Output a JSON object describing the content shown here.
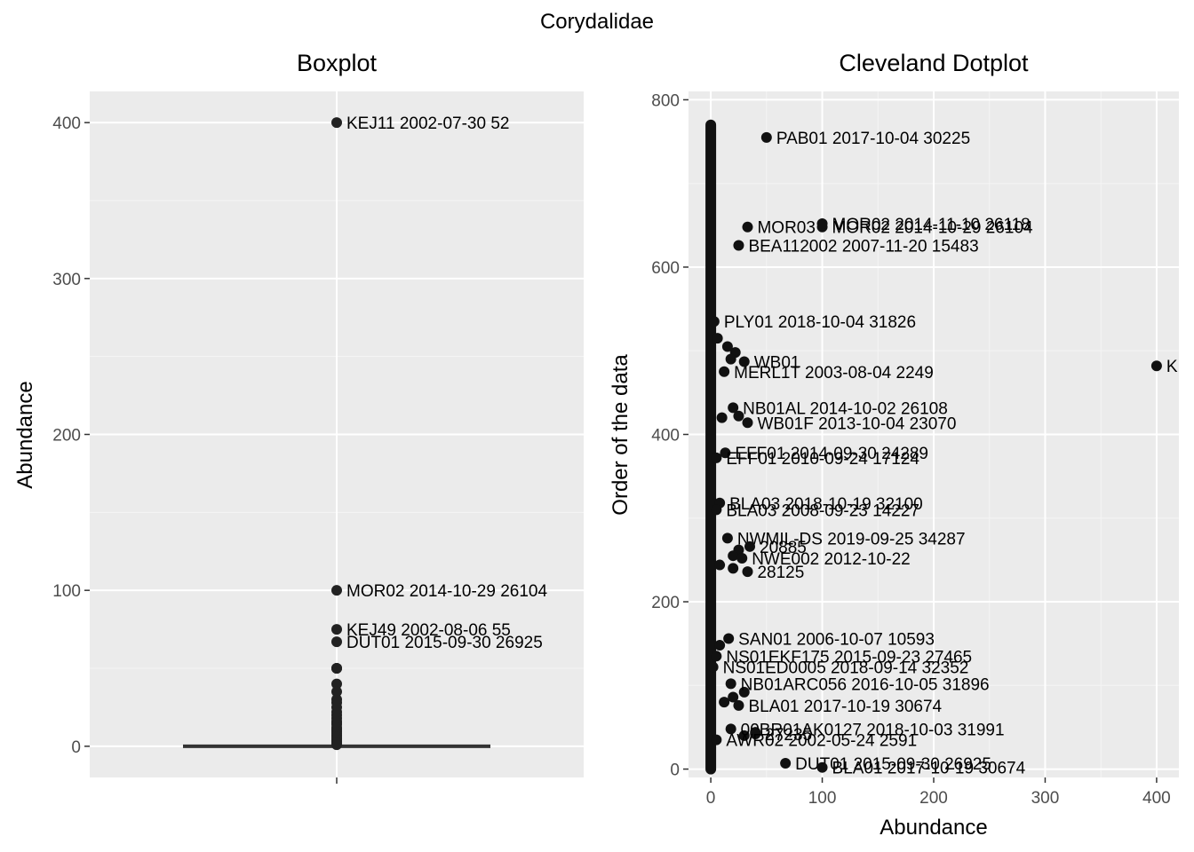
{
  "figure": {
    "title": "Corydalidae"
  },
  "chart_data": [
    {
      "type": "box",
      "title": "Boxplot",
      "xlabel": "",
      "ylabel": "Abundance",
      "ylim": [
        -20,
        420
      ],
      "y_ticks": [
        0,
        100,
        200,
        300,
        400
      ],
      "grid": true,
      "box": {
        "min": 0,
        "q1": 0,
        "median": 0,
        "q3": 0,
        "max": 0
      },
      "labeled_outliers": [
        {
          "label": "KEJ11 2002-07-30 52",
          "value": 400
        },
        {
          "label": "MOR02 2014-10-29 26104",
          "value": 100
        },
        {
          "label": "KEJ49 2002-08-06 55",
          "value": 75
        },
        {
          "label": "DUT01 2015-09-30 26925",
          "value": 67
        }
      ],
      "other_outlier_values": [
        50,
        50,
        50,
        40,
        35,
        30,
        28,
        25,
        22,
        20,
        18,
        16,
        15,
        14,
        12,
        11,
        10,
        9,
        8,
        7,
        6,
        5,
        4,
        3,
        2,
        1
      ]
    },
    {
      "type": "scatter",
      "title": "Cleveland Dotplot",
      "xlabel": "Abundance",
      "ylabel": "Order of the data",
      "xlim": [
        -20,
        420
      ],
      "ylim": [
        -10,
        810
      ],
      "x_ticks": [
        0,
        100,
        200,
        300,
        400
      ],
      "y_ticks": [
        0,
        200,
        400,
        600,
        800
      ],
      "grid": true,
      "labeled_points": [
        {
          "label": "PAB01 2017-10-04 30225",
          "x": 50,
          "y": 755
        },
        {
          "label": "MOR02 2014-10-29 26104",
          "x": 100,
          "y": 648
        },
        {
          "label": "MOR02 2014-11-10 26118",
          "x": 100,
          "y": 652
        },
        {
          "label": "MOR03",
          "x": 33,
          "y": 648
        },
        {
          "label": "BEA112002 2007-11-20 15483",
          "x": 25,
          "y": 626
        },
        {
          "label": "PLY01 2018-10-04 31826",
          "x": 3,
          "y": 535
        },
        {
          "label": "K",
          "x": 400,
          "y": 482
        },
        {
          "label": "MERL1T 2003-08-04 2249",
          "x": 12,
          "y": 475
        },
        {
          "label": "WB01",
          "x": 30,
          "y": 487
        },
        {
          "label": "NB01AL 2014-10-02 26108",
          "x": 20,
          "y": 432
        },
        {
          "label": "WB01F 2013-10-04 23070",
          "x": 33,
          "y": 414
        },
        {
          "label": "EFF01 2014-09-30 24289",
          "x": 13,
          "y": 378
        },
        {
          "label": "EFF01 2010-09-24 17124",
          "x": 5,
          "y": 372
        },
        {
          "label": "BLA03 2018-10-19 32100",
          "x": 8,
          "y": 318
        },
        {
          "label": "BLA03 2008-09-23 14227",
          "x": 5,
          "y": 310
        },
        {
          "label": "NWMIL-DS 2019-09-25 34287",
          "x": 15,
          "y": 276
        },
        {
          "label": "20885",
          "x": 35,
          "y": 266
        },
        {
          "label": "NWE002 2012-10-22",
          "x": 28,
          "y": 252
        },
        {
          "label": "28125",
          "x": 33,
          "y": 236
        },
        {
          "label": "SAN01 2006-10-07 10593",
          "x": 16,
          "y": 156
        },
        {
          "label": "NS01EKF175 2015-09-23 27465",
          "x": 5,
          "y": 135
        },
        {
          "label": "NS01ED0005 2018-09-14 32352",
          "x": 2,
          "y": 122
        },
        {
          "label": "NB01ARC056 2016-10-05 31896",
          "x": 18,
          "y": 102
        },
        {
          "label": "BLA01 2017-10-19 30674",
          "x": 25,
          "y": 76
        },
        {
          "label": "00BR01AK0127 2018-10-03 31991",
          "x": 18,
          "y": 48
        },
        {
          "label": "27235",
          "x": 40,
          "y": 42
        },
        {
          "label": "AWR02 2002-05-24 2591",
          "x": 5,
          "y": 35
        },
        {
          "label": "DUT01 2015-09-30 26925",
          "x": 67,
          "y": 7
        },
        {
          "label": "BLA01 2017-10-19 30674",
          "x": 100,
          "y": 2
        }
      ],
      "unlabeled_points": [
        {
          "x": 20,
          "y": 86
        },
        {
          "x": 30,
          "y": 92
        },
        {
          "x": 12,
          "y": 80
        },
        {
          "x": 8,
          "y": 148
        },
        {
          "x": 25,
          "y": 262
        },
        {
          "x": 20,
          "y": 255
        },
        {
          "x": 20,
          "y": 240
        },
        {
          "x": 8,
          "y": 244
        },
        {
          "x": 25,
          "y": 422
        },
        {
          "x": 10,
          "y": 420
        },
        {
          "x": 22,
          "y": 498
        },
        {
          "x": 15,
          "y": 505
        },
        {
          "x": 6,
          "y": 515
        },
        {
          "x": 18,
          "y": 490
        },
        {
          "x": 40,
          "y": 44
        },
        {
          "x": 30,
          "y": 40
        }
      ],
      "dense_column": {
        "x": 0,
        "y_range": [
          0,
          770
        ]
      }
    }
  ]
}
